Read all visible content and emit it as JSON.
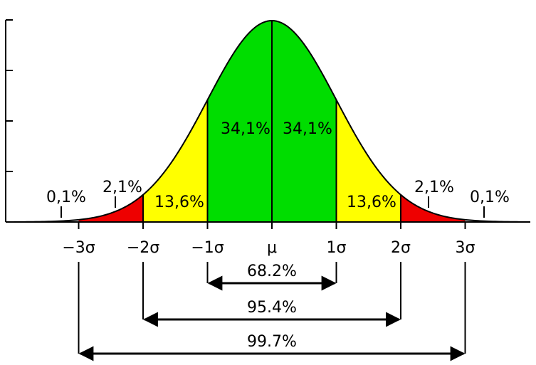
{
  "chart_data": {
    "type": "area",
    "distribution": "normal",
    "x_ticks": [
      "−3σ",
      "−2σ",
      "−1σ",
      "μ",
      "1σ",
      "2σ",
      "3σ"
    ],
    "xlim": [
      -4,
      4
    ],
    "regions": [
      {
        "from": -2,
        "to": -1,
        "color": "#ffff00",
        "label": "13,6%"
      },
      {
        "from": -1,
        "to": 0,
        "color": "#00dd00",
        "label": "34,1%"
      },
      {
        "from": 0,
        "to": 1,
        "color": "#00dd00",
        "label": "34,1%"
      },
      {
        "from": 1,
        "to": 2,
        "color": "#ffff00",
        "label": "13,6%"
      },
      {
        "from": -3,
        "to": -2,
        "color": "#ee0000",
        "label": "2,1%"
      },
      {
        "from": 2,
        "to": 3,
        "color": "#ee0000",
        "label": "2,1%"
      },
      {
        "from": -4,
        "to": -3,
        "color": "#ffffff",
        "label": "0,1%"
      },
      {
        "from": 3,
        "to": 4,
        "color": "#ffffff",
        "label": "0,1%"
      }
    ],
    "spans": [
      {
        "from": -1,
        "to": 1,
        "label": "68.2%"
      },
      {
        "from": -2,
        "to": 2,
        "label": "95.4%"
      },
      {
        "from": -3,
        "to": 3,
        "label": "99.7%"
      }
    ]
  }
}
